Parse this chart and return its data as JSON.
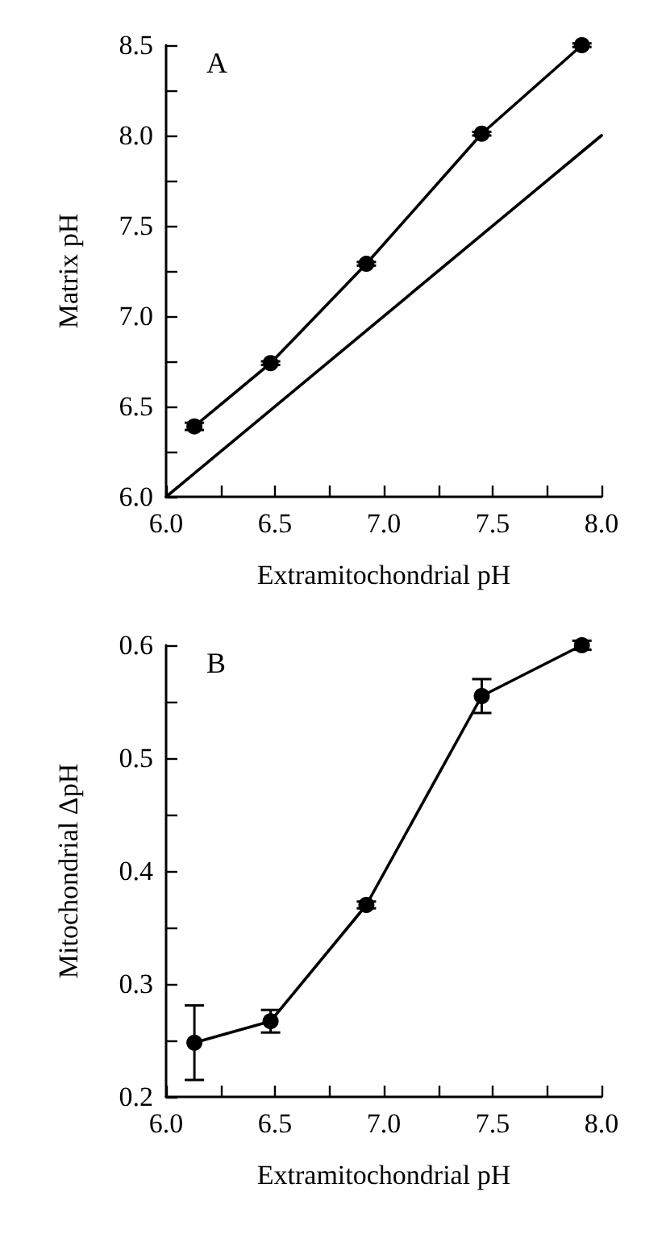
{
  "chart_data": [
    {
      "type": "line",
      "xlabel": "Extramitochondrial pH",
      "ylabel": "Matrix pH",
      "annotations": [
        "A"
      ],
      "marker": "circle",
      "line_style": "solid",
      "grid": false,
      "xlim": [
        6.0,
        8.0
      ],
      "xticks": [
        {
          "value": 6,
          "label": "6.0"
        },
        {
          "value": 6.25,
          "label": null
        },
        {
          "value": 6.5,
          "label": "6.5"
        },
        {
          "value": 6.75,
          "label": null
        },
        {
          "value": 7,
          "label": "7.0"
        },
        {
          "value": 7.25,
          "label": null
        },
        {
          "value": 7.5,
          "label": "7.5"
        },
        {
          "value": 7.75,
          "label": null
        },
        {
          "value": 8,
          "label": "8.0"
        }
      ],
      "ylim": [
        6.0,
        8.5
      ],
      "yticks": [
        {
          "value": 6,
          "label": "6.0"
        },
        {
          "value": 6.25,
          "label": null
        },
        {
          "value": 6.5,
          "label": "6.5"
        },
        {
          "value": 6.75,
          "label": null
        },
        {
          "value": 7,
          "label": "7.0"
        },
        {
          "value": 7.25,
          "label": null
        },
        {
          "value": 7.5,
          "label": "7.5"
        },
        {
          "value": 7.75,
          "label": null
        },
        {
          "value": 8,
          "label": "8.0"
        },
        {
          "value": 8.25,
          "label": null
        },
        {
          "value": 8.5,
          "label": "8.5"
        }
      ],
      "series": [
        {
          "color": "#000000",
          "x": [
            6.13,
            6.48,
            6.92,
            7.45,
            7.91
          ],
          "values": [
            6.39,
            6.74,
            7.29,
            8.01,
            8.5
          ],
          "errors": [
            0.02,
            0.01,
            0.01,
            0.01,
            0.01
          ]
        },
        {
          "color": "#000000",
          "marker": "none",
          "x": [
            6.0,
            8.0
          ],
          "values": [
            6.0,
            8.0
          ]
        }
      ]
    },
    {
      "type": "line",
      "xlabel": "Extramitochondrial pH",
      "ylabel": "Mitochondrial ΔpH",
      "annotations": [
        "B"
      ],
      "marker": "circle",
      "line_style": "solid",
      "grid": false,
      "xlim": [
        6.0,
        8.0
      ],
      "xticks": [
        {
          "value": 6,
          "label": "6.0"
        },
        {
          "value": 6.25,
          "label": null
        },
        {
          "value": 6.5,
          "label": "6.5"
        },
        {
          "value": 6.75,
          "label": null
        },
        {
          "value": 7,
          "label": "7.0"
        },
        {
          "value": 7.25,
          "label": null
        },
        {
          "value": 7.5,
          "label": "7.5"
        },
        {
          "value": 7.75,
          "label": null
        },
        {
          "value": 8,
          "label": "8.0"
        }
      ],
      "ylim": [
        0.2,
        0.6
      ],
      "yticks": [
        0.2,
        {
          "value": 0.25,
          "label": null
        },
        0.3,
        {
          "value": 0.35,
          "label": null
        },
        0.4,
        {
          "value": 0.45,
          "label": null
        },
        0.5,
        {
          "value": 0.55,
          "label": null
        },
        0.6
      ],
      "series": [
        {
          "color": "#000000",
          "x": [
            6.13,
            6.48,
            6.92,
            7.45,
            7.91
          ],
          "values": [
            0.248,
            0.267,
            0.37,
            0.555,
            0.6
          ],
          "errors": [
            0.033,
            0.01,
            0.003,
            0.015,
            0.004
          ]
        }
      ]
    }
  ]
}
